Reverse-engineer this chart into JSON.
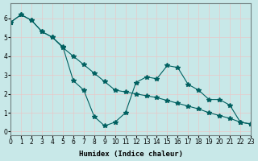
{
  "xlabel": "Humidex (Indice chaleur)",
  "ylabel": "",
  "background_color": "#c8e8e8",
  "line_color": "#006060",
  "grid_color": "#e8c8c8",
  "xlim": [
    0,
    23
  ],
  "ylim": [
    -0.2,
    6.8
  ],
  "yticks": [
    0,
    1,
    2,
    3,
    4,
    5,
    6
  ],
  "xticks": [
    0,
    1,
    2,
    3,
    4,
    5,
    6,
    7,
    8,
    9,
    10,
    11,
    12,
    13,
    14,
    15,
    16,
    17,
    18,
    19,
    20,
    21,
    22,
    23
  ],
  "series1_x": [
    0,
    1,
    2,
    3,
    4,
    5,
    6,
    7,
    8,
    9,
    10,
    11,
    12,
    13,
    14,
    15,
    16,
    17,
    18,
    19,
    20,
    21,
    22,
    23
  ],
  "series1_y": [
    5.8,
    6.2,
    5.9,
    5.3,
    5.0,
    4.5,
    2.7,
    2.2,
    0.8,
    0.3,
    0.5,
    1.0,
    2.6,
    2.9,
    2.8,
    3.5,
    3.4,
    2.5,
    2.2,
    1.7,
    1.7,
    1.4,
    0.5,
    0.4
  ],
  "series2_x": [
    0,
    1,
    2,
    3,
    4,
    5,
    6,
    7,
    8,
    9,
    10,
    11,
    12,
    13,
    14,
    15,
    16,
    17,
    18,
    19,
    20,
    21,
    22,
    23
  ],
  "series2_y": [
    5.8,
    6.2,
    5.9,
    5.3,
    5.0,
    4.45,
    4.0,
    3.55,
    3.1,
    2.65,
    2.2,
    2.1,
    2.0,
    1.9,
    1.8,
    1.65,
    1.5,
    1.35,
    1.2,
    1.0,
    0.85,
    0.7,
    0.5,
    0.4
  ]
}
